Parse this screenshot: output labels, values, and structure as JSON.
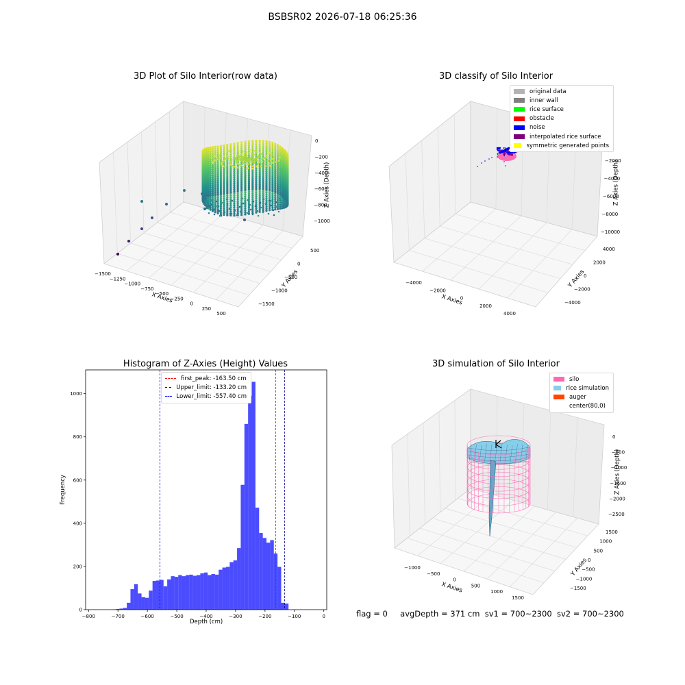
{
  "suptitle": "BSBSR02 2026-07-18 06:25:36",
  "footer": {
    "flag": "flag = 0",
    "avg": "avgDepth = 371 cm",
    "sv1": "sv1 = 700~2300",
    "sv2": "sv2 = 700~2300"
  },
  "chart_data": [
    {
      "type": "scatter",
      "subtype": "3d",
      "title": "3D Plot of Silo Interior(row data)",
      "xlabel": "X Axies",
      "ylabel": "Y Axies",
      "zlabel": "Z Axies (Depth)",
      "x_ticks": [
        "−1500",
        "−1250",
        "−1000",
        "−750",
        "−500",
        "−250",
        "0",
        "250",
        "500"
      ],
      "y_ticks": [
        "500",
        "0",
        "−500",
        "−1000",
        "−1500"
      ],
      "z_ticks": [
        "0",
        "−200",
        "−400",
        "−600",
        "−800",
        "−1000"
      ],
      "colormap": "viridis"
    },
    {
      "type": "scatter",
      "subtype": "3d",
      "title": "3D classify of Silo Interior",
      "xlabel": "X Axies",
      "ylabel": "Y Axies",
      "zlabel": "Z Axies (Depth)",
      "x_ticks": [
        "−4000",
        "−2000",
        "0",
        "2000",
        "4000"
      ],
      "y_ticks": [
        "4000",
        "2000",
        "0",
        "−2000",
        "−4000"
      ],
      "z_ticks": [
        "−2000",
        "−4000",
        "−6000",
        "−8000",
        "−10000"
      ],
      "legend": [
        {
          "label": "original data",
          "color": "#b3b3b3"
        },
        {
          "label": "inner wall",
          "color": "#808080"
        },
        {
          "label": "rice surface",
          "color": "#00ff00"
        },
        {
          "label": "obstacle",
          "color": "#ff0000"
        },
        {
          "label": "noise",
          "color": "#0000ff"
        },
        {
          "label": "interpolated rice surface",
          "color": "#800080"
        },
        {
          "label": "symmetric generated points",
          "color": "#ffff00"
        }
      ],
      "legend_position": "top-right"
    },
    {
      "type": "bar",
      "subtype": "histogram",
      "title": "Histogram of Z-Axies (Height) Values",
      "xlabel": "Depth (cm)",
      "ylabel": "Frequency",
      "xlim": [
        -810,
        10
      ],
      "ylim": [
        0,
        1110
      ],
      "x_ticks": [
        -800,
        -700,
        -600,
        -500,
        -400,
        -300,
        -200,
        -100,
        0
      ],
      "y_ticks": [
        0,
        200,
        400,
        600,
        800,
        1000
      ],
      "bin_start": -720,
      "bin_width": 12.5,
      "counts": [
        1,
        3,
        5,
        8,
        32,
        95,
        118,
        75,
        58,
        55,
        88,
        133,
        135,
        138,
        108,
        140,
        155,
        152,
        160,
        155,
        160,
        162,
        157,
        160,
        168,
        172,
        160,
        165,
        162,
        185,
        195,
        198,
        220,
        228,
        285,
        578,
        860,
        990,
        1055,
        472,
        355,
        332,
        310,
        322,
        260,
        198,
        32,
        28
      ],
      "bar_color": "#0000ff",
      "vlines": [
        {
          "label": "first_peak: -163.50 cm",
          "x": -163.5,
          "color": "#ff0000"
        },
        {
          "label": "Upper_limit: -133.20 cm",
          "x": -133.2,
          "color": "#00008b"
        },
        {
          "label": "Lower_limit: -557.40 cm",
          "x": -557.4,
          "color": "#0000ff"
        }
      ],
      "legend_position": "top-center"
    },
    {
      "type": "surface",
      "subtype": "3d",
      "title": "3D simulation of Silo Interior",
      "xlabel": "X Axies",
      "ylabel": "Y Axies",
      "zlabel": "Z Axies (Depth)",
      "x_ticks": [
        "−1000",
        "−500",
        "0",
        "500",
        "1000",
        "1500"
      ],
      "y_ticks": [
        "1500",
        "1000",
        "500",
        "0",
        "−500",
        "−1000",
        "−1500"
      ],
      "z_ticks": [
        "0",
        "−500",
        "−1000",
        "−1500",
        "−2000",
        "−2500"
      ],
      "legend": [
        {
          "label": "silo",
          "color": "#ff69b4"
        },
        {
          "label": "rice simulation",
          "color": "#87ceeb"
        },
        {
          "label": "auger",
          "color": "#ff4500"
        },
        {
          "label": "center(80,0)",
          "color": "#ffffff"
        }
      ],
      "legend_position": "top-right"
    }
  ]
}
